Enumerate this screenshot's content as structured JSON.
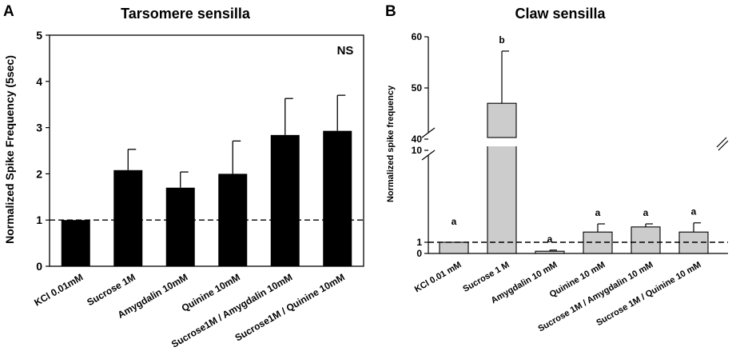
{
  "chart_data": [
    {
      "panel": "A",
      "type": "bar",
      "title": "Tarsomere sensilla",
      "xlabel": "",
      "ylabel": "Normalized Spike Frequency (5sec)",
      "ylim": [
        0,
        5
      ],
      "yticks": [
        "0",
        "1",
        "2",
        "3",
        "4",
        "5"
      ],
      "categories": [
        "KCl 0.01mM",
        "Sucrose 1M",
        "Amygdalin 10mM",
        "Quinine 10mM",
        "Sucrose1M / Amygdalin 10mM",
        "Sucrose1M / Quinine 10mM"
      ],
      "values": [
        1.0,
        2.08,
        1.7,
        2.0,
        2.84,
        2.93
      ],
      "errors": [
        0,
        0.45,
        0.34,
        0.71,
        0.79,
        0.77
      ],
      "reference_line": 1,
      "annotation": "NS",
      "bar_color": "#000000"
    },
    {
      "panel": "B",
      "type": "bar",
      "title": "Claw sensilla",
      "xlabel": "",
      "ylabel": "Normalized spike frequency",
      "axis_break": true,
      "ylim_lower": [
        0,
        10
      ],
      "ylim_upper": [
        40,
        60
      ],
      "yticks_lower": [
        "0",
        "1",
        "10"
      ],
      "yticks_upper": [
        "40",
        "50",
        "60"
      ],
      "categories": [
        "KCl 0.01 mM",
        "Sucrose 1 M",
        "Amygdalin 10 mM",
        "Quinine 10 mM",
        "Sucrose 1M / Amygdalin 10 mM",
        "Sucrose 1M / Quinine 10 mM"
      ],
      "values": [
        1.0,
        47.0,
        0.2,
        2.0,
        2.5,
        2.0
      ],
      "errors": [
        0,
        10.2,
        0.1,
        0.8,
        0.3,
        0.9
      ],
      "significance": [
        "a",
        "b",
        "a",
        "a",
        "a",
        "a"
      ],
      "reference_line": 1,
      "bar_color": "#cccccc"
    }
  ]
}
